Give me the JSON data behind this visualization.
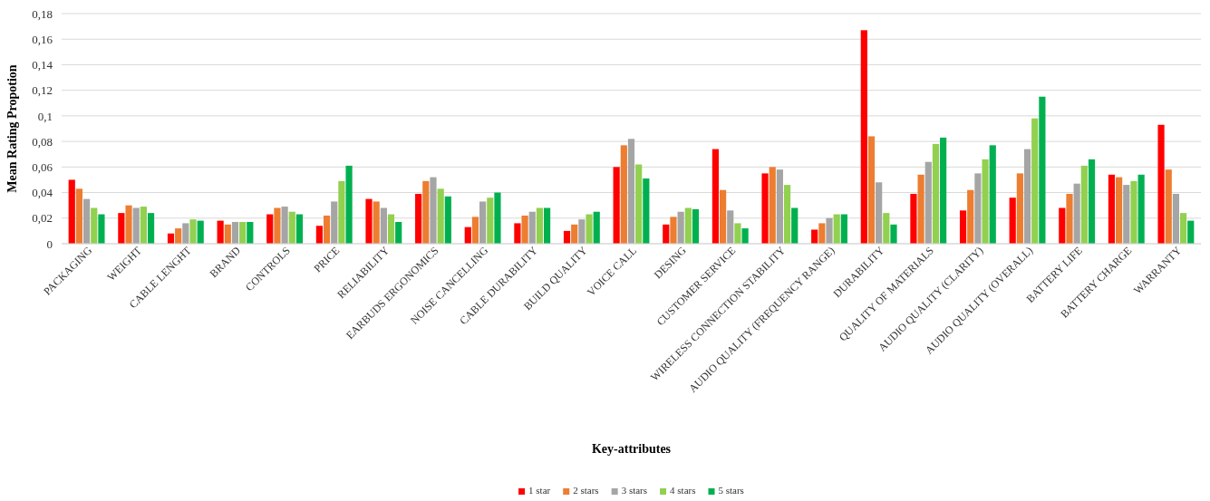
{
  "chart_data": {
    "type": "bar",
    "xlabel": "Key-attributes",
    "ylabel": "Mean Rating Propotion",
    "categories": [
      "PACKAGING",
      "WEIGHT",
      "CABLE LENGHT",
      "BRAND",
      "CONTROLS",
      "PRICE",
      "RELIABILITY",
      "EARBUDS ERGONOMICS",
      "NOISE CANCELLING",
      "CABLE DURABILITY",
      "BUILD QUALITY",
      "VOICE CALL",
      "DESING",
      "CUSTOMER SERVICE",
      "WIRELESS CONNECTION STABILITY",
      "AUDIO QUALITY (FREQUENCY RANGE)",
      "DURABILITY",
      "QUALITY OF MATERIALS",
      "AUDIO QUALITY (CLARITY)",
      "AUDIO QUALITY (OVERALL)",
      "BATTERY LIFE",
      "BATTERY CHARGE",
      "WARRANTY"
    ],
    "series": [
      {
        "name": "1 star",
        "color": "#ff0000",
        "values": [
          0.05,
          0.024,
          0.008,
          0.018,
          0.023,
          0.014,
          0.035,
          0.039,
          0.013,
          0.016,
          0.01,
          0.06,
          0.015,
          0.074,
          0.055,
          0.011,
          0.167,
          0.039,
          0.026,
          0.036,
          0.028,
          0.054,
          0.093
        ]
      },
      {
        "name": "2 stars",
        "color": "#ed7d31",
        "values": [
          0.043,
          0.03,
          0.012,
          0.015,
          0.028,
          0.022,
          0.033,
          0.049,
          0.021,
          0.022,
          0.015,
          0.077,
          0.021,
          0.042,
          0.06,
          0.016,
          0.084,
          0.054,
          0.042,
          0.055,
          0.039,
          0.052,
          0.058
        ]
      },
      {
        "name": "3 stars",
        "color": "#a5a5a5",
        "values": [
          0.035,
          0.028,
          0.016,
          0.017,
          0.029,
          0.033,
          0.028,
          0.052,
          0.033,
          0.025,
          0.019,
          0.082,
          0.025,
          0.026,
          0.058,
          0.02,
          0.048,
          0.064,
          0.055,
          0.074,
          0.047,
          0.046,
          0.039
        ]
      },
      {
        "name": "4 stars",
        "color": "#92d050",
        "values": [
          0.028,
          0.029,
          0.019,
          0.017,
          0.025,
          0.049,
          0.023,
          0.043,
          0.036,
          0.028,
          0.023,
          0.062,
          0.028,
          0.016,
          0.046,
          0.023,
          0.024,
          0.078,
          0.066,
          0.098,
          0.061,
          0.049,
          0.024
        ]
      },
      {
        "name": "5 stars",
        "color": "#00b050",
        "values": [
          0.023,
          0.024,
          0.018,
          0.017,
          0.023,
          0.061,
          0.017,
          0.037,
          0.04,
          0.028,
          0.025,
          0.051,
          0.027,
          0.012,
          0.028,
          0.023,
          0.015,
          0.083,
          0.077,
          0.115,
          0.066,
          0.054,
          0.018
        ]
      }
    ],
    "ylim": [
      0,
      0.18
    ],
    "yticks": [
      0,
      {
        "value": 0.02,
        "label": "0,02"
      },
      {
        "value": 0.04,
        "label": "0,04"
      },
      {
        "value": 0.06,
        "label": "0,06"
      },
      {
        "value": 0.08,
        "label": "0,08"
      },
      {
        "value": 0.1,
        "label": "0,1"
      },
      {
        "value": 0.12,
        "label": "0,12"
      },
      {
        "value": 0.14,
        "label": "0,14"
      },
      {
        "value": 0.16,
        "label": "0,16"
      },
      {
        "value": 0.18,
        "label": "0,18"
      }
    ],
    "grid": "y",
    "legend": "bottom"
  }
}
